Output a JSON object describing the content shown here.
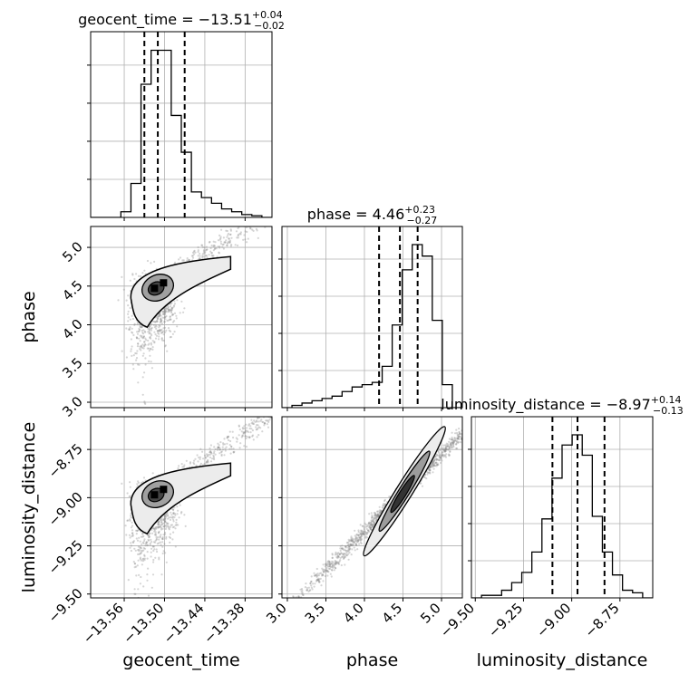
{
  "chart_data": {
    "type": "corner",
    "parameters": [
      "geocent_time",
      "phase",
      "luminosity_distance"
    ],
    "titles": [
      {
        "prefix": "geocent_time = −13.51",
        "sup": "+0.04",
        "sub": "−0.02"
      },
      {
        "prefix": "phase = 4.46",
        "sup": "+0.23",
        "sub": "−0.27"
      },
      {
        "prefix": "luminosity_distance = −8.97",
        "sup": "+0.14",
        "sub": "−0.13"
      }
    ],
    "ranges": [
      [
        -13.61,
        -13.34
      ],
      [
        2.93,
        5.27
      ],
      [
        -9.52,
        -8.58
      ]
    ],
    "ticks": [
      {
        "values": [
          -13.56,
          -13.5,
          -13.44,
          -13.38
        ],
        "labels": [
          "−13.56",
          "−13.50",
          "−13.44",
          "−13.38"
        ]
      },
      {
        "values": [
          3.0,
          3.5,
          4.0,
          4.5,
          5.0
        ],
        "labels": [
          "3.0",
          "3.5",
          "4.0",
          "4.5",
          "5.0"
        ]
      },
      {
        "values": [
          -9.5,
          -9.25,
          -9.0,
          -8.75
        ],
        "labels": [
          "−9.50",
          "−9.25",
          "−9.00",
          "−8.75"
        ]
      }
    ],
    "quantiles": [
      [
        -13.53,
        -13.51,
        -13.47
      ],
      [
        4.19,
        4.46,
        4.69
      ],
      [
        -9.1,
        -8.97,
        -8.83
      ]
    ],
    "histograms": [
      {
        "edges_min": -13.61,
        "edges_max": -13.34,
        "counts": [
          0,
          0,
          0,
          2,
          12,
          47,
          59,
          59,
          36,
          23,
          9,
          7,
          5,
          3,
          2,
          1,
          0.6,
          0
        ]
      },
      {
        "edges_min": 2.93,
        "edges_max": 5.27,
        "counts": [
          0,
          1,
          2,
          3,
          4,
          5,
          7,
          9,
          10,
          11,
          18,
          36,
          60,
          71,
          66,
          38,
          10,
          0
        ]
      },
      {
        "edges_min": -9.52,
        "edges_max": -8.58,
        "counts": [
          0,
          1,
          1,
          3,
          6,
          10,
          18,
          31,
          47,
          60,
          64,
          56,
          32,
          18,
          9,
          3,
          2,
          0
        ]
      }
    ],
    "correlations": [
      {
        "x": 0,
        "y": 1,
        "center": [
          -13.515,
          4.46
        ]
      },
      {
        "x": 0,
        "y": 2,
        "center": [
          -13.515,
          -8.99
        ]
      },
      {
        "x": 1,
        "y": 2,
        "center": [
          4.46,
          -8.99
        ]
      }
    ],
    "grid": true
  }
}
